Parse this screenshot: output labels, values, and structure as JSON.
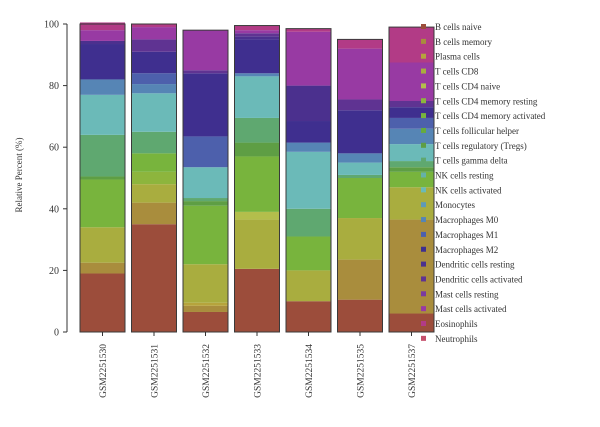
{
  "chart_data": {
    "type": "bar",
    "stacked": true,
    "ylabel": "Relative Percent (%)",
    "xlabel": "",
    "ylim": [
      0,
      100
    ],
    "yticks": [
      0,
      20,
      40,
      60,
      80,
      100
    ],
    "legend_position": "right",
    "categories": [
      "GSM2251530",
      "GSM2251531",
      "GSM2251532",
      "GSM2251533",
      "GSM2251534",
      "GSM2251535",
      "GSM2251537"
    ],
    "series": [
      {
        "name": "B cells naive",
        "color": "#9c4d3b",
        "values": [
          19,
          35,
          6.5,
          20.5,
          10,
          10.5,
          6
        ]
      },
      {
        "name": "B cells memory",
        "color": "#a98d3d",
        "values": [
          3.5,
          7,
          2,
          0,
          0,
          13,
          30.5
        ]
      },
      {
        "name": "Plasma cells",
        "color": "#b6a43c",
        "values": [
          0,
          0,
          1,
          0,
          0,
          0,
          0
        ]
      },
      {
        "name": "T cells CD8",
        "color": "#a9ad3f",
        "values": [
          11.5,
          6,
          12.5,
          16,
          10,
          13.5,
          10.5
        ]
      },
      {
        "name": "T cells CD4 naive",
        "color": "#b3be4c",
        "values": [
          0,
          0,
          0,
          2.5,
          0,
          0,
          0
        ]
      },
      {
        "name": "T cells CD4 memory resting",
        "color": "#8db53d",
        "values": [
          0,
          4,
          0,
          0,
          0,
          0,
          0
        ]
      },
      {
        "name": "T cells CD4 memory activated",
        "color": "#78b43d",
        "values": [
          15.5,
          6,
          19,
          18,
          11,
          13,
          5
        ]
      },
      {
        "name": "T cells follicular helper",
        "color": "#66ab3d",
        "values": [
          0,
          0,
          0,
          0,
          0,
          0,
          0
        ]
      },
      {
        "name": "T cells regulatory (Tregs)",
        "color": "#5e9e44",
        "values": [
          1,
          0,
          1.5,
          4.5,
          0,
          0,
          1.5
        ]
      },
      {
        "name": "T cells gamma delta",
        "color": "#5fa870",
        "values": [
          13.5,
          7,
          1,
          8,
          9,
          1,
          2
        ]
      },
      {
        "name": "NK cells resting",
        "color": "#65b1a8",
        "values": [
          0,
          0,
          0,
          0,
          0,
          0,
          0
        ]
      },
      {
        "name": "NK cells activated",
        "color": "#6bbab8",
        "values": [
          13,
          12.5,
          10,
          13.5,
          18.5,
          4,
          5.5
        ]
      },
      {
        "name": "Monocytes",
        "color": "#5e9ab7",
        "values": [
          0,
          0,
          0,
          0,
          0,
          0,
          0
        ]
      },
      {
        "name": "Macrophages M0",
        "color": "#5685b5",
        "values": [
          5,
          3,
          0,
          1,
          3,
          3,
          5
        ]
      },
      {
        "name": "Macrophages M1",
        "color": "#4d60ac",
        "values": [
          0,
          3.5,
          10,
          0,
          0,
          0,
          3.5
        ]
      },
      {
        "name": "Macrophages M2",
        "color": "#3f2f8f",
        "values": [
          11.5,
          7,
          20.5,
          11,
          7,
          14,
          3.5
        ]
      },
      {
        "name": "Dendritic cells resting",
        "color": "#4b308e",
        "values": [
          1,
          0,
          0,
          1,
          11.5,
          0,
          0
        ]
      },
      {
        "name": "Dendritic cells activated",
        "color": "#5f3392",
        "values": [
          0,
          4,
          1,
          1,
          0,
          3.5,
          2
        ]
      },
      {
        "name": "Mast cells resting",
        "color": "#7a3aa0",
        "values": [
          0,
          0,
          0,
          0,
          0,
          0,
          0
        ]
      },
      {
        "name": "Mast cells activated",
        "color": "#983aa3",
        "values": [
          3.5,
          4,
          13,
          1,
          17.5,
          16.5,
          12.5
        ]
      },
      {
        "name": "Eosinophils",
        "color": "#b23b86",
        "values": [
          2.5,
          1,
          0,
          1.5,
          1,
          3,
          11.5
        ]
      },
      {
        "name": "Neutrophils",
        "color": "#c5506c",
        "values": [
          0,
          0,
          0,
          0,
          0,
          0,
          0
        ]
      }
    ]
  },
  "colors": {
    "axis": "#333333",
    "outline": "#3a3a3a",
    "legend_marker_shift": "#d06a86"
  }
}
